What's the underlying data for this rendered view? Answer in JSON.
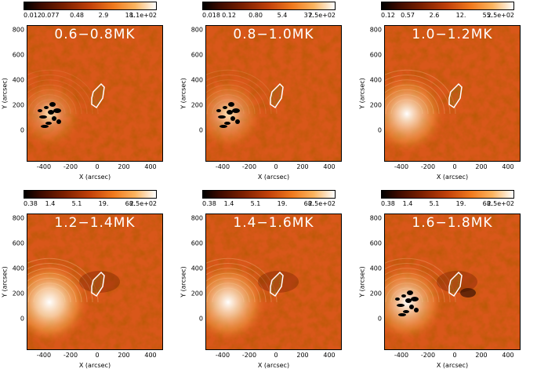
{
  "axes": {
    "ylabel": "Y (arcsec)",
    "xlabel": "X (arcsec)",
    "yticks": [
      "800",
      "600",
      "400",
      "200",
      "0"
    ],
    "xticks": [
      "-400",
      "-200",
      "0",
      "200",
      "400"
    ]
  },
  "panels": [
    {
      "temperature": "0.6−0.8MK",
      "colorbar": [
        "0.012",
        "0.077",
        "0.48",
        "2.9",
        "18.",
        "1.1e+02"
      ],
      "brightness": 0.35,
      "dark_spots": true
    },
    {
      "temperature": "0.8−1.0MK",
      "colorbar": [
        "0.018",
        "0.12",
        "0.80",
        "5.4",
        "37.",
        "2.5e+02"
      ],
      "brightness": 0.45,
      "dark_spots": true
    },
    {
      "temperature": "1.0−1.2MK",
      "colorbar": [
        "0.12",
        "0.57",
        "2.6",
        "12.",
        "55.",
        "2.5e+02"
      ],
      "brightness": 0.75,
      "dark_spots": false
    },
    {
      "temperature": "1.2−1.4MK",
      "colorbar": [
        "0.38",
        "1.4",
        "5.1",
        "19.",
        "68.",
        "2.5e+02"
      ],
      "brightness": 0.9,
      "dark_spots": false
    },
    {
      "temperature": "1.4−1.6MK",
      "colorbar": [
        "0.38",
        "1.4",
        "5.1",
        "19.",
        "68.",
        "2.5e+02"
      ],
      "brightness": 0.8,
      "dark_spots": false
    },
    {
      "temperature": "1.6−1.8MK",
      "colorbar": [
        "0.38",
        "1.4",
        "5.1",
        "19.",
        "68.",
        "2.5e+02"
      ],
      "brightness": 0.7,
      "dark_spots": true
    }
  ]
}
